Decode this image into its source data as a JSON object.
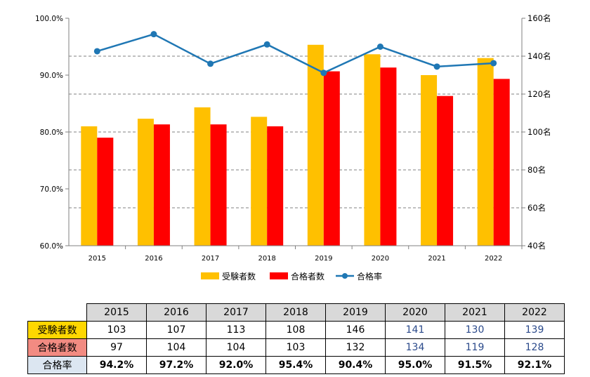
{
  "chart_data": {
    "type": "bar",
    "categories": [
      "2015",
      "2016",
      "2017",
      "2018",
      "2019",
      "2020",
      "2021",
      "2022"
    ],
    "series": [
      {
        "name": "受験者数",
        "type": "bar",
        "axis": "right",
        "color": "#ffc000",
        "values": [
          103,
          107,
          113,
          108,
          146,
          141,
          130,
          139
        ]
      },
      {
        "name": "合格者数",
        "type": "bar",
        "axis": "right",
        "color": "#ff0000",
        "values": [
          97,
          104,
          104,
          103,
          132,
          134,
          119,
          128
        ]
      },
      {
        "name": "合格率",
        "type": "line",
        "axis": "left",
        "color": "#1f77b4",
        "values": [
          94.2,
          97.2,
          92.0,
          95.4,
          90.4,
          95.0,
          91.5,
          92.1
        ]
      }
    ],
    "left_axis": {
      "ylim": [
        60,
        100
      ],
      "tick_labels": [
        "60.0%",
        "70.0%",
        "80.0%",
        "90.0%",
        "100.0%"
      ]
    },
    "right_axis": {
      "ylim": [
        40,
        160
      ],
      "tick_labels": [
        "40名",
        "60名",
        "80名",
        "100名",
        "120名",
        "140名",
        "160名"
      ]
    },
    "grid": true,
    "legend": "bottom"
  },
  "table": {
    "headers": [
      "2015",
      "2016",
      "2017",
      "2018",
      "2019",
      "2020",
      "2021",
      "2022"
    ],
    "rows": [
      {
        "label": "受験者数",
        "label_bg": "#ffd700",
        "values": [
          "103",
          "107",
          "113",
          "108",
          "146",
          "141",
          "130",
          "139"
        ]
      },
      {
        "label": "合格者数",
        "label_bg": "#f28b82",
        "values": [
          "97",
          "104",
          "104",
          "103",
          "132",
          "134",
          "119",
          "128"
        ]
      },
      {
        "label": "合格率",
        "label_bg": "#dce6f1",
        "values": [
          "94.2%",
          "97.2%",
          "92.0%",
          "95.4%",
          "90.4%",
          "95.0%",
          "91.5%",
          "92.1%"
        ]
      }
    ]
  }
}
